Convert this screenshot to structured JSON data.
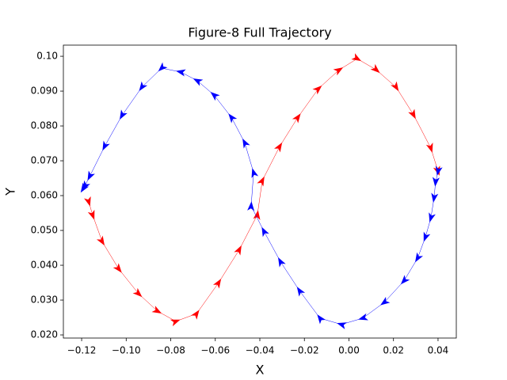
{
  "chart_data": {
    "type": "trajectory",
    "title": "Figure-8 Full Trajectory",
    "x_label": "X",
    "y_label": "Y",
    "series": [
      {
        "color": "#ff0000",
        "x": [
          -0.1168,
          -0.115,
          -0.1108,
          -0.1033,
          -0.0944,
          -0.0859,
          -0.0777,
          -0.0684,
          -0.0585,
          -0.0492,
          -0.0411,
          -0.0389,
          -0.0311,
          -0.0229,
          -0.0137,
          -0.0044,
          0.0037,
          0.0123,
          0.0212,
          0.029,
          0.0368,
          0.04
        ],
        "values": [
          0.0582,
          0.0543,
          0.0468,
          0.0389,
          0.0318,
          0.0268,
          0.0239,
          0.0261,
          0.035,
          0.0445,
          0.0545,
          0.0643,
          0.0741,
          0.0825,
          0.0907,
          0.0961,
          0.0993,
          0.0961,
          0.0911,
          0.0832,
          0.0736,
          0.067
        ]
      },
      {
        "color": "#0000ff",
        "x": [
          0.04,
          0.0389,
          0.0382,
          0.0368,
          0.0343,
          0.0308,
          0.0247,
          0.0158,
          0.0062,
          -0.0034,
          -0.013,
          -0.0222,
          -0.0308,
          -0.0382,
          -0.0439,
          -0.0428,
          -0.0468,
          -0.0528,
          -0.0606,
          -0.0681,
          -0.0756,
          -0.0841,
          -0.093,
          -0.1019,
          -0.1097,
          -0.1164,
          -0.1186,
          -0.1193
        ],
        "values": [
          0.067,
          0.0639,
          0.0593,
          0.0536,
          0.048,
          0.042,
          0.0355,
          0.0293,
          0.0248,
          0.023,
          0.0248,
          0.0327,
          0.0411,
          0.0498,
          0.057,
          0.0666,
          0.0752,
          0.0825,
          0.0889,
          0.093,
          0.0955,
          0.0966,
          0.0911,
          0.083,
          0.0741,
          0.0655,
          0.0627,
          0.062
        ]
      }
    ],
    "xlim": [
      -0.1282,
      0.0482
    ],
    "ylim": [
      0.0191,
      0.1032
    ],
    "xticks": [
      {
        "value": -0.12,
        "label": "−0.12"
      },
      {
        "value": -0.1,
        "label": "−0.10"
      },
      {
        "value": -0.08,
        "label": "−0.08"
      },
      {
        "value": -0.06,
        "label": "−0.06"
      },
      {
        "value": -0.04,
        "label": "−0.04"
      },
      {
        "value": -0.02,
        "label": "−0.02"
      },
      {
        "value": 0,
        "label": "0.00"
      },
      0.02,
      0.04
    ],
    "yticks": [
      {
        "value": 0.02,
        "label": "0.020"
      },
      {
        "value": 0.03,
        "label": "0.030"
      },
      {
        "value": 0.04,
        "label": "0.040"
      },
      {
        "value": 0.05,
        "label": "0.050"
      },
      {
        "value": 0.06,
        "label": "0.060"
      },
      {
        "value": 0.07,
        "label": "0.070"
      },
      {
        "value": 0.08,
        "label": "0.080"
      },
      {
        "value": 0.09,
        "label": "0.090"
      },
      {
        "value": 0.1,
        "label": "0.10"
      }
    ],
    "grid": false
  }
}
